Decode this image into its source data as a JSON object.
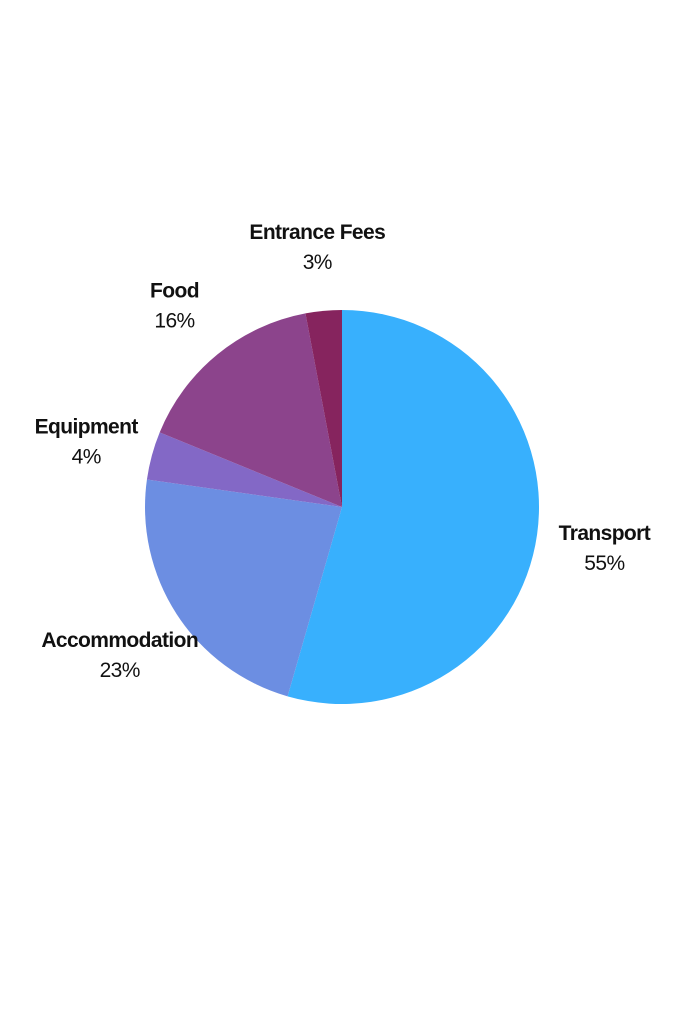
{
  "chart_data": {
    "type": "pie",
    "title": "",
    "legend": "none",
    "start_angle_deg": 0,
    "direction": "clockwise",
    "slices": [
      {
        "label": "Transport",
        "value": 55,
        "value_label": "55%",
        "color": "#38B0FD"
      },
      {
        "label": "Accommodation",
        "value": 23,
        "value_label": "23%",
        "color": "#6C8EE2"
      },
      {
        "label": "Equipment",
        "value": 4,
        "value_label": "4%",
        "color": "#8368C6"
      },
      {
        "label": "Food",
        "value": 16,
        "value_label": "16%",
        "color": "#8C448C"
      },
      {
        "label": "Entrance Fees",
        "value": 3,
        "value_label": "3%",
        "color": "#86245E"
      }
    ]
  }
}
